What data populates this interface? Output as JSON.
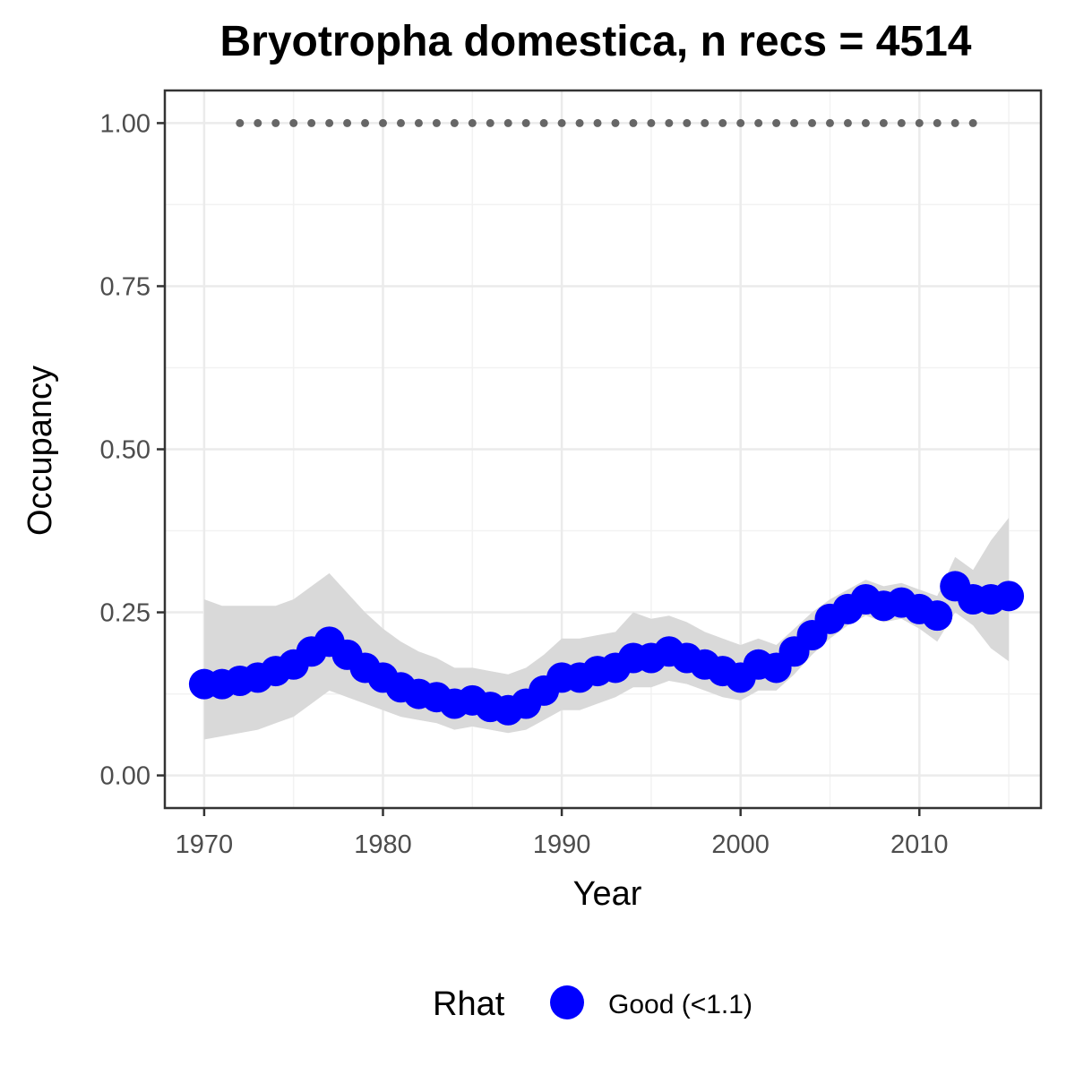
{
  "chart_data": {
    "type": "line",
    "title": "Bryotropha domestica, n recs = 4514",
    "xlabel": "Year",
    "ylabel": "Occupancy",
    "xlim": [
      1967.8,
      2016.8
    ],
    "ylim": [
      -0.05,
      1.05
    ],
    "xticks": [
      1970,
      1980,
      1990,
      2000,
      2010
    ],
    "xtick_labels": [
      "1970",
      "1980",
      "1990",
      "2000",
      "2010"
    ],
    "yticks": [
      0,
      0.25,
      0.5,
      0.75,
      1.0
    ],
    "ytick_labels": [
      "0.00",
      "0.25",
      "0.50",
      "0.75",
      "1.00"
    ],
    "grid": true,
    "legend": {
      "title": "Rhat",
      "position": "bottom",
      "entries": [
        {
          "label": "Good (<1.1)",
          "color": "#0000ff"
        }
      ]
    },
    "colors": {
      "points": "#0000ff",
      "ribbon": "#d9d9d9",
      "records": "#666666"
    },
    "series": [
      {
        "name": "Good (<1.1)",
        "marker": "circle",
        "x": [
          1970,
          1971,
          1972,
          1973,
          1974,
          1975,
          1976,
          1977,
          1978,
          1979,
          1980,
          1981,
          1982,
          1983,
          1984,
          1985,
          1986,
          1987,
          1988,
          1989,
          1990,
          1991,
          1992,
          1993,
          1994,
          1995,
          1996,
          1997,
          1998,
          1999,
          2000,
          2001,
          2002,
          2003,
          2004,
          2005,
          2006,
          2007,
          2008,
          2009,
          2010,
          2011,
          2012,
          2013,
          2014,
          2015
        ],
        "y": [
          0.14,
          0.14,
          0.145,
          0.15,
          0.16,
          0.17,
          0.19,
          0.205,
          0.185,
          0.165,
          0.15,
          0.135,
          0.125,
          0.12,
          0.11,
          0.115,
          0.105,
          0.1,
          0.11,
          0.13,
          0.15,
          0.15,
          0.16,
          0.165,
          0.18,
          0.18,
          0.19,
          0.18,
          0.17,
          0.16,
          0.15,
          0.17,
          0.165,
          0.19,
          0.215,
          0.24,
          0.255,
          0.27,
          0.26,
          0.265,
          0.255,
          0.245,
          0.29,
          0.27,
          0.27,
          0.275
        ],
        "lower": [
          0.055,
          0.06,
          0.065,
          0.07,
          0.08,
          0.09,
          0.11,
          0.13,
          0.12,
          0.11,
          0.1,
          0.09,
          0.085,
          0.08,
          0.07,
          0.075,
          0.07,
          0.065,
          0.07,
          0.085,
          0.1,
          0.1,
          0.11,
          0.12,
          0.135,
          0.135,
          0.145,
          0.14,
          0.13,
          0.12,
          0.115,
          0.13,
          0.13,
          0.155,
          0.185,
          0.21,
          0.23,
          0.245,
          0.235,
          0.24,
          0.225,
          0.205,
          0.25,
          0.23,
          0.195,
          0.175
        ],
        "upper": [
          0.27,
          0.26,
          0.26,
          0.26,
          0.26,
          0.27,
          0.29,
          0.31,
          0.28,
          0.25,
          0.225,
          0.205,
          0.19,
          0.18,
          0.165,
          0.165,
          0.16,
          0.155,
          0.165,
          0.185,
          0.21,
          0.21,
          0.215,
          0.22,
          0.25,
          0.24,
          0.245,
          0.235,
          0.22,
          0.21,
          0.2,
          0.21,
          0.2,
          0.225,
          0.25,
          0.27,
          0.285,
          0.3,
          0.29,
          0.295,
          0.285,
          0.275,
          0.335,
          0.315,
          0.36,
          0.395
        ]
      },
      {
        "name": "",
        "marker": "dot",
        "x": [
          1972,
          1973,
          1974,
          1975,
          1976,
          1977,
          1978,
          1979,
          1980,
          1981,
          1982,
          1983,
          1984,
          1985,
          1986,
          1987,
          1988,
          1989,
          1990,
          1991,
          1992,
          1993,
          1994,
          1995,
          1996,
          1997,
          1998,
          1999,
          2000,
          2001,
          2002,
          2003,
          2004,
          2005,
          2006,
          2007,
          2008,
          2009,
          2010,
          2011,
          2012,
          2013
        ],
        "y": [
          1,
          1,
          1,
          1,
          1,
          1,
          1,
          1,
          1,
          1,
          1,
          1,
          1,
          1,
          1,
          1,
          1,
          1,
          1,
          1,
          1,
          1,
          1,
          1,
          1,
          1,
          1,
          1,
          1,
          1,
          1,
          1,
          1,
          1,
          1,
          1,
          1,
          1,
          1,
          1,
          1,
          1
        ]
      }
    ]
  }
}
